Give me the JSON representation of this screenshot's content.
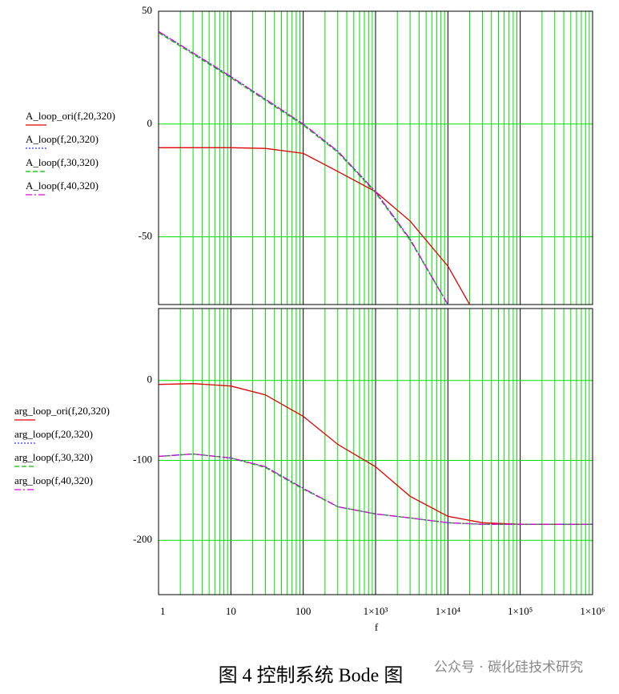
{
  "chart_data": [
    {
      "type": "line",
      "xscale": "log",
      "xlim": [
        1,
        1000000
      ],
      "ylim": [
        -80,
        50
      ],
      "yticks": [
        50,
        0,
        -50
      ],
      "xgrid": [
        1,
        10,
        100,
        1000,
        10000,
        100000,
        1000000
      ],
      "minor_xgrid": [
        2,
        3,
        4,
        5,
        6,
        7,
        8,
        9,
        20,
        30,
        40,
        50,
        60,
        70,
        80,
        90,
        200,
        300,
        400,
        500,
        600,
        700,
        800,
        900,
        2000,
        3000,
        4000,
        5000,
        6000,
        7000,
        8000,
        9000,
        20000,
        30000,
        40000,
        50000,
        60000,
        70000,
        80000,
        90000,
        200000,
        300000,
        400000,
        500000,
        600000,
        700000,
        800000,
        900000
      ],
      "x": [
        1,
        3,
        10,
        30,
        100,
        300,
        1000,
        3000,
        10000,
        20000
      ],
      "series": [
        {
          "name": "A_loop_ori(f,20,320)",
          "color": "#e00000",
          "dash": "solid",
          "values": [
            -10.5,
            -10.5,
            -10.5,
            -10.8,
            -13,
            -21,
            -30,
            -43,
            -63,
            -80
          ]
        },
        {
          "name": "A_loop(f,20,320)",
          "color": "#3030ff",
          "dash": "dotted",
          "values": [
            41,
            31.5,
            21,
            11,
            0,
            -12,
            -30,
            -51,
            -80,
            null
          ]
        },
        {
          "name": "A_loop(f,30,320)",
          "color": "#00c000",
          "dash": "dashed",
          "values": [
            40.5,
            31,
            20.5,
            10.5,
            -0.5,
            -12.5,
            -30.5,
            -51.5,
            -80,
            null
          ]
        },
        {
          "name": "A_loop(f,40,320)",
          "color": "#e000e0",
          "dash": "dashdot",
          "values": [
            41,
            31.5,
            21,
            11,
            0,
            -12,
            -30,
            -51,
            -80,
            null
          ]
        }
      ]
    },
    {
      "type": "line",
      "xscale": "log",
      "xlim": [
        1,
        1000000
      ],
      "ylim": [
        -268,
        90
      ],
      "yticks": [
        0,
        -100,
        -200
      ],
      "xticks": [
        1,
        10,
        100,
        {
          "value": 1000,
          "label": "1×10³"
        },
        {
          "value": 10000,
          "label": "1×10⁴"
        },
        {
          "value": 100000,
          "label": "1×10⁵"
        },
        {
          "value": 1000000,
          "label": "1×10⁶"
        }
      ],
      "minor_xgrid": [
        2,
        3,
        4,
        5,
        6,
        7,
        8,
        9,
        20,
        30,
        40,
        50,
        60,
        70,
        80,
        90,
        200,
        300,
        400,
        500,
        600,
        700,
        800,
        900,
        2000,
        3000,
        4000,
        5000,
        6000,
        7000,
        8000,
        9000,
        20000,
        30000,
        40000,
        50000,
        60000,
        70000,
        80000,
        90000,
        200000,
        300000,
        400000,
        500000,
        600000,
        700000,
        800000,
        900000
      ],
      "xlabel": "f",
      "x": [
        1,
        3,
        10,
        30,
        100,
        300,
        1000,
        3000,
        10000,
        30000,
        100000,
        1000000
      ],
      "series": [
        {
          "name": "arg_loop_ori(f,20,320)",
          "color": "#e00000",
          "dash": "solid",
          "values": [
            -5,
            -4,
            -7,
            -18,
            -45,
            -80,
            -108,
            -145,
            -170,
            -178,
            -180,
            -180
          ]
        },
        {
          "name": "arg_loop(f,20,320)",
          "color": "#3030ff",
          "dash": "dotted",
          "values": [
            -95,
            -92,
            -97,
            -108,
            -135,
            -158,
            -167,
            -172,
            -178,
            -180,
            -180,
            -180
          ]
        },
        {
          "name": "arg_loop(f,30,320)",
          "color": "#00c000",
          "dash": "dashed",
          "values": [
            -95,
            -92,
            -97,
            -109,
            -136,
            -158,
            -167,
            -172,
            -178,
            -180,
            -180,
            -180
          ]
        },
        {
          "name": "arg_loop(f,40,320)",
          "color": "#e000e0",
          "dash": "dashdot",
          "values": [
            -95,
            -92,
            -97,
            -108,
            -135,
            -158,
            -167,
            -172,
            -178,
            -180,
            -180,
            -180
          ]
        }
      ]
    }
  ],
  "caption": "图 4  控制系统 Bode 图",
  "watermark": "公众号 · 碳化硅技术研究"
}
